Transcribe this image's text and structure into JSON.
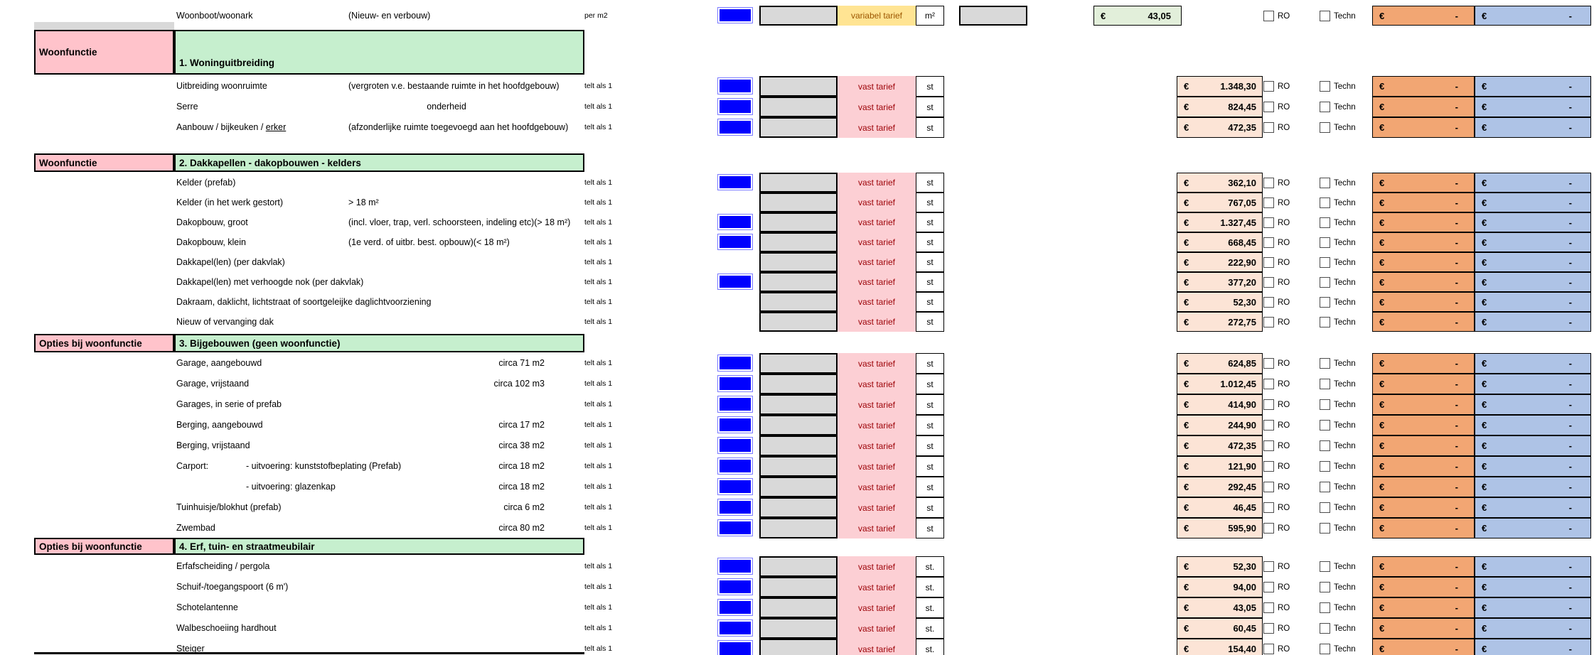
{
  "labels": {
    "count": "telt als 1",
    "vast_tarief": "vast tarief",
    "ro": "RO",
    "techn": "Techn",
    "euro": "€",
    "dash": "-"
  },
  "colors": {
    "header_pink": "#ffc3cb",
    "header_green": "#c6efce",
    "input_blue": "#0101fe",
    "input_gray": "#d9d9d9",
    "tarief_pink": "#fccfd4",
    "tarief_yellow": "#ffe493",
    "tarief_text_red": "#9c0006",
    "tarief_text_brown": "#9c5700",
    "price_peach": "#fce4d6",
    "total_green": "#e2efda",
    "subtotal_orange": "#f2a673",
    "subtotal_blue": "#aec3e6"
  },
  "top_row": {
    "label": "Woonboot/woonark",
    "note": "(Nieuw- en verbouw)",
    "count": "per m2",
    "tarief": "variabel tarief",
    "unit": "m²",
    "total": "43,05"
  },
  "sections": [
    {
      "left": "Woonfunctie",
      "title": "1. Woninguitbreiding",
      "unit": "st",
      "rows": [
        {
          "label": "Uitbreiding woonruimte",
          "note": "(vergroten v.e. bestaande ruimte in het hoofdgebouw)",
          "blue": true,
          "price": "1.348,30"
        },
        {
          "label": "Serre",
          "note_center": "onderheid",
          "blue": true,
          "price": "824,45"
        },
        {
          "label": "Aanbouw / bijkeuken / ",
          "label_u": "erker",
          "note": "(afzonderlijke ruimte toegevoegd aan het hoofdgebouw)",
          "blue": true,
          "price": "472,35"
        }
      ]
    },
    {
      "left": "Woonfunctie",
      "title": "2. Dakkapellen - dakopbouwen - kelders",
      "unit": "st",
      "rows": [
        {
          "label": "Kelder (prefab)",
          "blue": true,
          "price": "362,10"
        },
        {
          "label": "Kelder (in het werk gestort)",
          "note": "> 18 m²",
          "blue": false,
          "price": "767,05"
        },
        {
          "label": "Dakopbouw, groot",
          "note": "(incl. vloer, trap, verl. schoorsteen, indeling etc)(> 18 m²)",
          "blue": true,
          "price": "1.327,45"
        },
        {
          "label": "Dakopbouw, klein",
          "note": "(1e verd. of uitbr. best. opbouw)(< 18 m²)",
          "blue": true,
          "price": "668,45"
        },
        {
          "label": "Dakkapel(len) (per dakvlak)",
          "blue": false,
          "price": "222,90"
        },
        {
          "label": "Dakkapel(len) met verhoogde nok (per dakvlak)",
          "blue": true,
          "price": "377,20"
        },
        {
          "label": "Dakraam, daklicht, lichtstraat of soortgeleijke daglichtvoorziening",
          "blue": false,
          "price": "52,30"
        },
        {
          "label": "Nieuw of vervanging dak",
          "blue": false,
          "price": "272,75"
        }
      ]
    },
    {
      "left": "Opties bij woonfunctie",
      "title": "3. Bijgebouwen (geen woonfunctie)",
      "unit": "st",
      "rows": [
        {
          "label": "Garage, aangebouwd",
          "size": "circa 71 m2",
          "blue": true,
          "price": "624,85"
        },
        {
          "label": "Garage, vrijstaand",
          "size": "circa 102 m3",
          "blue": true,
          "price": "1.012,45"
        },
        {
          "label": "Garages, in serie of prefab",
          "blue": true,
          "price": "414,90"
        },
        {
          "label": "Berging, aangebouwd",
          "size": "circa 17 m2",
          "blue": true,
          "price": "244,90"
        },
        {
          "label": "Berging, vrijstaand",
          "size": "circa 38 m2",
          "blue": true,
          "price": "472,35"
        },
        {
          "label": "Carport:",
          "label_sub": "- uitvoering: kunststofbeplating (Prefab)",
          "size": "circa 18 m2",
          "blue": true,
          "price": "121,90"
        },
        {
          "label": "",
          "label_sub": "- uitvoering: glazenkap",
          "size": "circa 18 m2",
          "blue": true,
          "price": "292,45"
        },
        {
          "label": "Tuinhuisje/blokhut (prefab)",
          "size": "circa 6 m2",
          "blue": true,
          "price": "46,45"
        },
        {
          "label": "Zwembad",
          "size": "circa 80 m2",
          "blue": true,
          "price": "595,90"
        }
      ]
    },
    {
      "left": "Opties bij woonfunctie",
      "title": "4. Erf, tuin- en straatmeubilair",
      "unit": "st.",
      "rows": [
        {
          "label": "Erfafscheiding / pergola",
          "blue": true,
          "price": "52,30"
        },
        {
          "label": "Schuif-/toegangspoort (6 m')",
          "blue": true,
          "price": "94,00"
        },
        {
          "label": "Schotelantenne",
          "blue": true,
          "price": "43,05"
        },
        {
          "label": "Walbeschoeiing hardhout",
          "blue": true,
          "price": "60,45"
        },
        {
          "label": "Steiger",
          "blue": true,
          "price": "154,40"
        }
      ]
    }
  ]
}
